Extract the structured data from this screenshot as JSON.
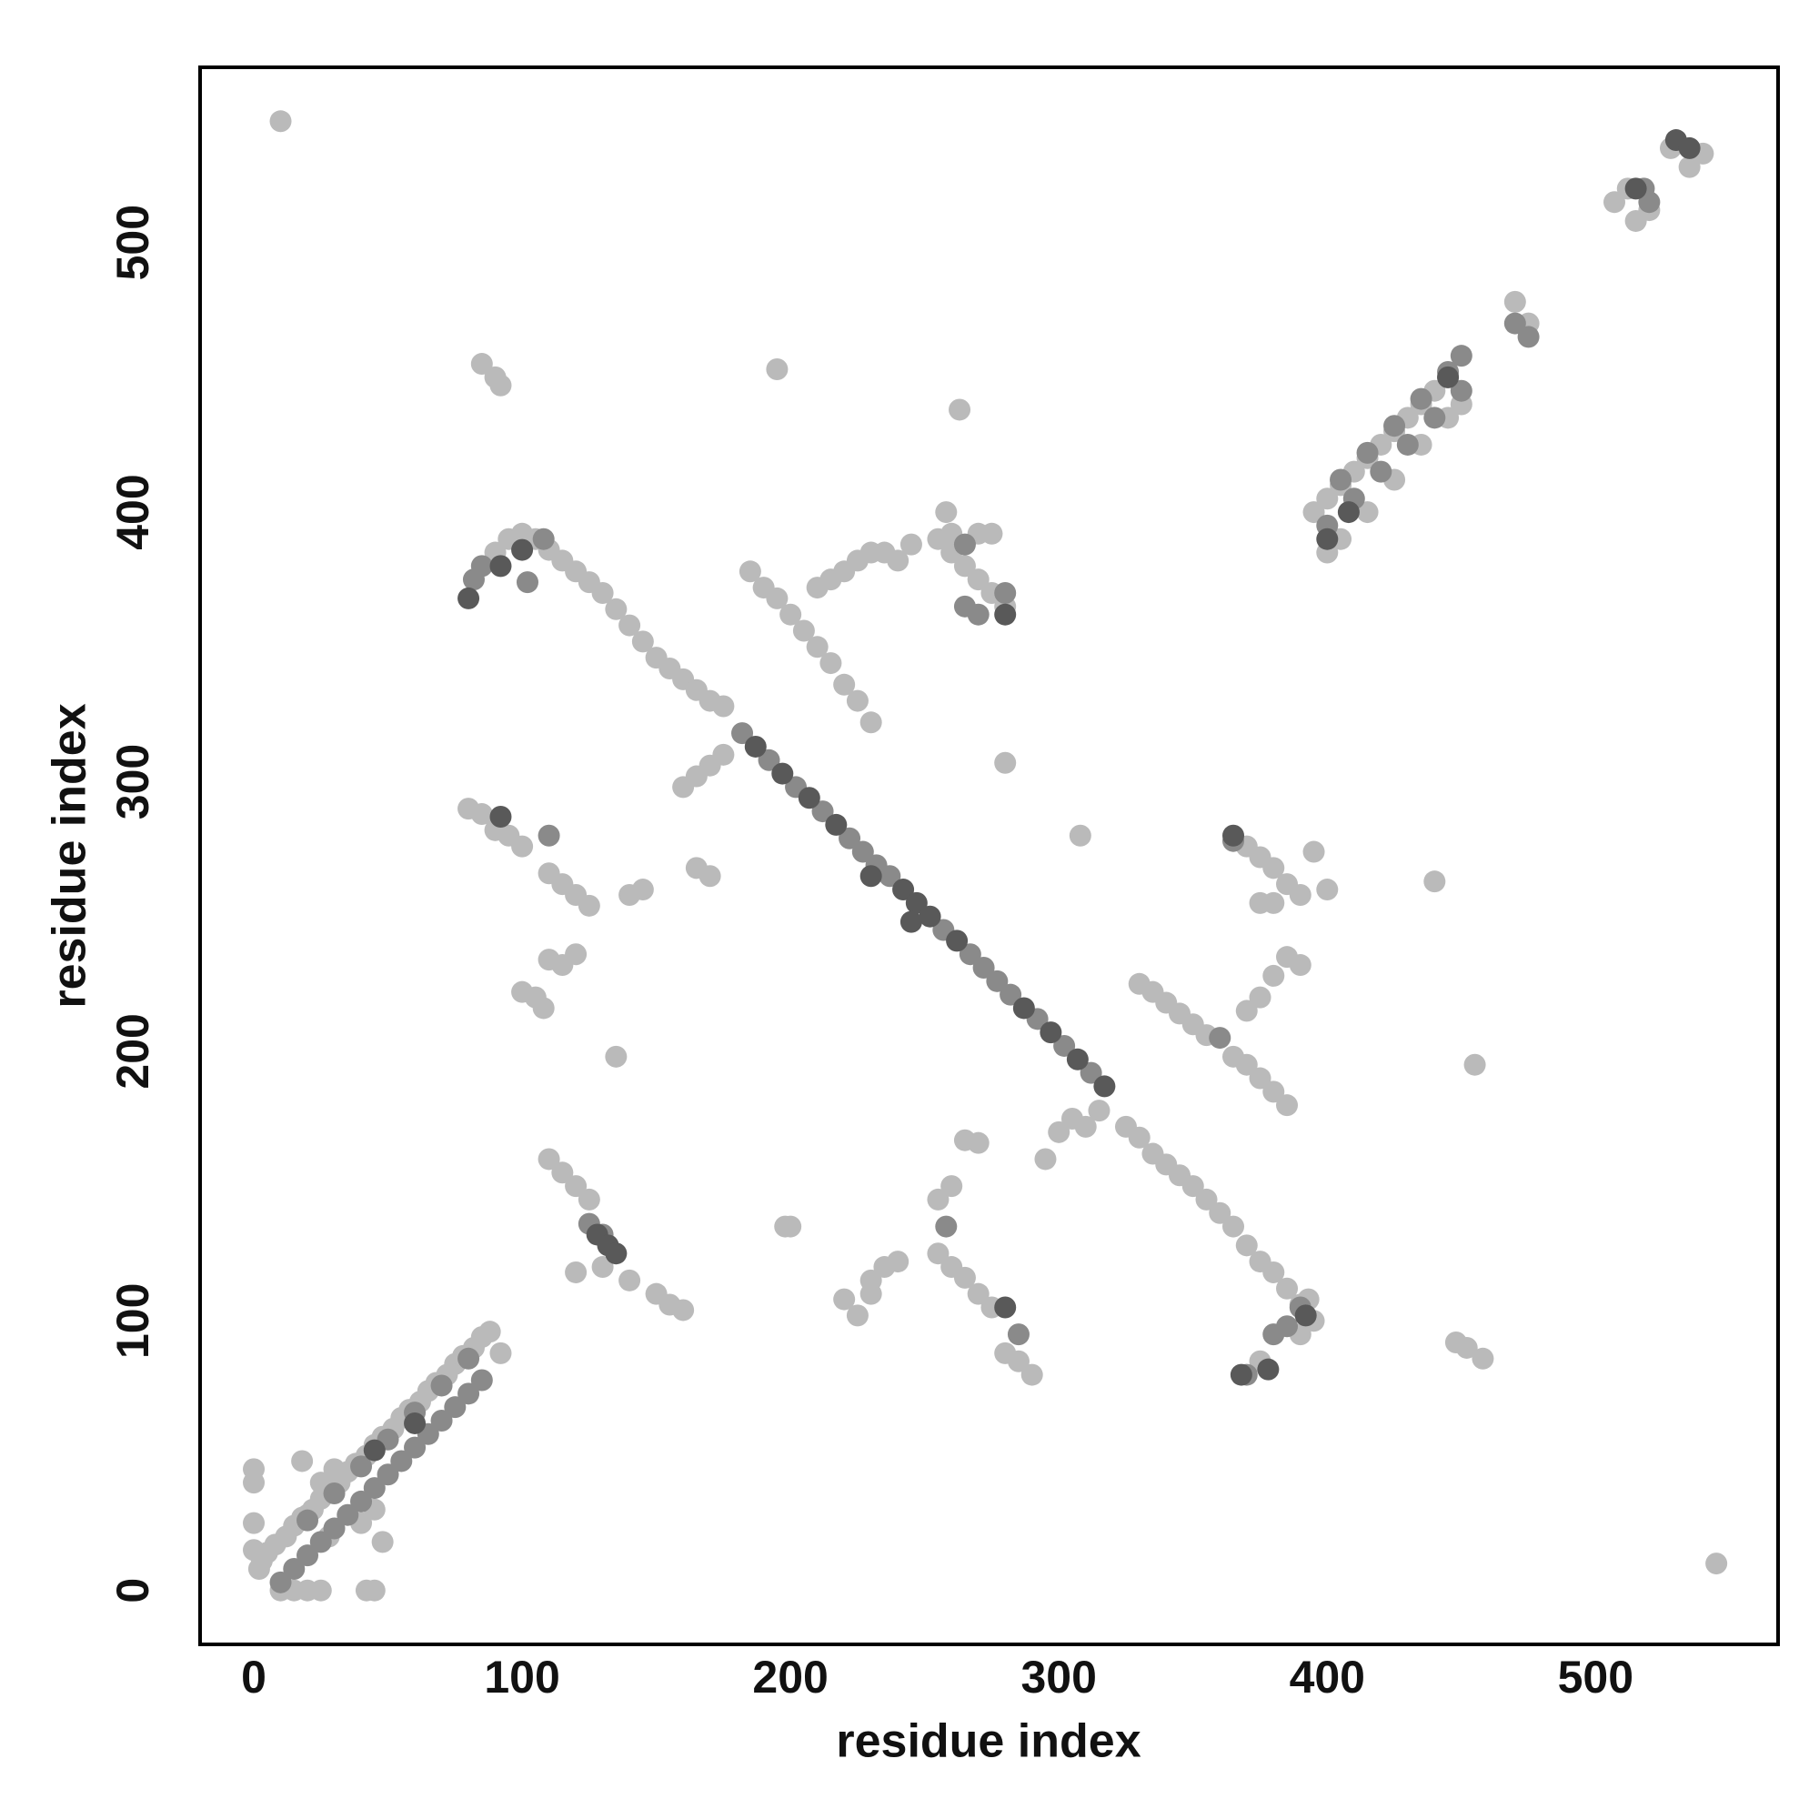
{
  "chart_data": {
    "type": "scatter",
    "x_label": "residue index",
    "y_label": "residue index",
    "xlim": [
      -20,
      568
    ],
    "ylim": [
      -20,
      565
    ],
    "xticks": [
      0,
      100,
      200,
      300,
      400,
      500
    ],
    "yticks": [
      0,
      100,
      200,
      300,
      400,
      500
    ],
    "grid": false,
    "series": [
      {
        "color": "#bababa",
        "x": [
          3,
          5,
          8,
          12,
          15,
          18,
          22,
          25,
          28,
          32,
          35,
          38,
          42,
          45,
          48,
          52,
          55,
          58,
          62,
          65,
          68,
          72,
          75,
          78,
          82,
          85,
          88,
          92,
          0,
          0,
          0,
          0,
          2,
          10,
          15,
          20,
          25,
          42,
          45,
          18,
          25,
          48,
          40,
          30,
          45,
          20,
          28,
          395,
          400,
          405,
          410,
          415,
          420,
          425,
          430,
          435,
          440,
          445,
          400,
          405,
          415,
          425,
          435,
          445,
          450,
          507,
          512,
          515,
          520,
          528,
          535,
          540,
          475,
          470,
          90,
          95,
          100,
          105,
          110,
          115,
          120,
          125,
          130,
          135,
          140,
          145,
          150,
          155,
          160,
          165,
          170,
          175,
          325,
          330,
          335,
          340,
          345,
          350,
          355,
          360,
          365,
          370,
          375,
          380,
          385,
          390,
          395,
          185,
          190,
          195,
          200,
          205,
          210,
          215,
          220,
          225,
          230,
          210,
          215,
          220,
          225,
          230,
          235,
          240,
          245,
          255,
          260,
          265,
          270,
          275,
          280,
          260,
          270,
          275,
          258,
          80,
          85,
          90,
          95,
          100,
          110,
          115,
          120,
          125,
          110,
          115,
          120,
          100,
          105,
          108,
          140,
          145,
          135,
          198,
          160,
          165,
          170,
          175,
          165,
          170,
          200,
          220,
          225,
          230,
          235,
          240,
          230,
          255,
          260,
          265,
          270,
          275,
          255,
          260,
          265,
          270,
          280,
          285,
          290,
          280,
          308,
          295,
          300,
          305,
          310,
          315,
          330,
          335,
          340,
          345,
          350,
          355,
          365,
          370,
          375,
          380,
          385,
          370,
          375,
          380,
          385,
          390,
          395,
          400,
          375,
          380,
          370,
          375,
          380,
          385,
          390,
          448,
          452,
          458,
          440,
          455,
          195,
          263,
          545,
          10,
          85,
          90,
          92,
          120,
          130,
          140,
          150,
          155,
          160,
          110,
          115,
          120,
          125,
          375,
          390,
          393
        ],
        "values": [
          11,
          14,
          17,
          20,
          24,
          27,
          30,
          34,
          37,
          40,
          44,
          47,
          50,
          54,
          57,
          60,
          64,
          67,
          70,
          74,
          77,
          80,
          84,
          87,
          90,
          94,
          96,
          88,
          45,
          40,
          25,
          15,
          8,
          0,
          0,
          0,
          0,
          0,
          0,
          48,
          40,
          18,
          25,
          45,
          30,
          28,
          20,
          400,
          405,
          410,
          415,
          420,
          425,
          430,
          435,
          440,
          445,
          450,
          385,
          390,
          400,
          412,
          425,
          435,
          440,
          515,
          520,
          508,
          512,
          535,
          528,
          533,
          470,
          478,
          385,
          390,
          392,
          390,
          386,
          382,
          378,
          374,
          370,
          364,
          358,
          352,
          346,
          342,
          338,
          334,
          330,
          328,
          172,
          168,
          162,
          158,
          154,
          150,
          145,
          140,
          135,
          128,
          122,
          118,
          112,
          106,
          100,
          378,
          372,
          368,
          362,
          356,
          350,
          344,
          336,
          330,
          322,
          372,
          375,
          378,
          382,
          385,
          385,
          382,
          388,
          390,
          385,
          380,
          375,
          370,
          365,
          392,
          392,
          392,
          400,
          290,
          288,
          282,
          280,
          276,
          266,
          262,
          258,
          254,
          234,
          232,
          236,
          222,
          220,
          216,
          258,
          260,
          198,
          135,
          298,
          302,
          306,
          310,
          268,
          265,
          135,
          108,
          102,
          110,
          120,
          122,
          115,
          125,
          120,
          116,
          110,
          105,
          145,
          150,
          167,
          166,
          88,
          85,
          80,
          307,
          280,
          160,
          170,
          175,
          172,
          178,
          225,
          222,
          218,
          214,
          210,
          206,
          198,
          195,
          190,
          185,
          180,
          276,
          272,
          268,
          262,
          258,
          274,
          260,
          255,
          255,
          215,
          220,
          228,
          235,
          232,
          92,
          90,
          86,
          263,
          195,
          453,
          438,
          10,
          545,
          455,
          450,
          447,
          118,
          120,
          115,
          110,
          106,
          104,
          160,
          155,
          150,
          145,
          85,
          95,
          108
        ]
      },
      {
        "color": "#8a8a8a",
        "x": [
          10,
          15,
          20,
          25,
          30,
          35,
          40,
          45,
          50,
          55,
          60,
          65,
          70,
          75,
          80,
          85,
          20,
          30,
          40,
          50,
          60,
          70,
          80,
          400,
          410,
          420,
          430,
          440,
          450,
          405,
          415,
          425,
          435,
          445,
          450,
          470,
          475,
          518,
          520,
          182,
          192,
          202,
          212,
          222,
          227,
          232,
          237,
          257,
          267,
          272,
          277,
          282,
          292,
          302,
          312,
          82,
          85,
          102,
          108,
          265,
          270,
          280,
          360,
          370,
          380,
          385,
          390,
          125,
          130,
          285,
          110,
          258,
          365,
          265
        ],
        "values": [
          3,
          8,
          13,
          18,
          23,
          28,
          33,
          38,
          43,
          48,
          53,
          58,
          63,
          68,
          73,
          78,
          26,
          36,
          46,
          56,
          66,
          76,
          86,
          395,
          405,
          415,
          425,
          435,
          445,
          412,
          422,
          432,
          442,
          452,
          458,
          470,
          465,
          520,
          515,
          318,
          308,
          298,
          289,
          279,
          274,
          269,
          265,
          245,
          236,
          231,
          226,
          221,
          212,
          202,
          192,
          375,
          380,
          374,
          390,
          365,
          362,
          370,
          205,
          80,
          95,
          98,
          105,
          136,
          132,
          95,
          280,
          135,
          278,
          388
        ]
      },
      {
        "color": "#595959",
        "x": [
          187,
          197,
          207,
          217,
          242,
          247,
          252,
          262,
          287,
          297,
          307,
          317,
          245,
          128,
          132,
          135,
          80,
          92,
          100,
          368,
          378,
          392,
          280,
          400,
          408,
          445,
          530,
          535,
          515,
          60,
          45,
          92,
          365,
          230,
          280
        ],
        "values": [
          313,
          303,
          294,
          284,
          260,
          255,
          250,
          241,
          216,
          207,
          197,
          187,
          248,
          132,
          128,
          125,
          368,
          380,
          386,
          80,
          82,
          102,
          362,
          390,
          400,
          450,
          538,
          535,
          520,
          62,
          52,
          287,
          280,
          265,
          105
        ]
      }
    ]
  }
}
